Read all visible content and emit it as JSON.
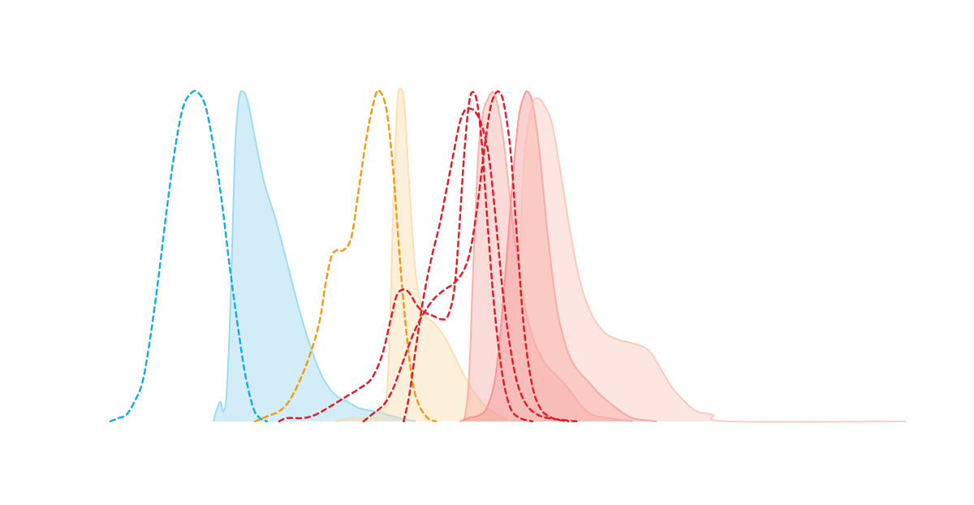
{
  "chart_data": {
    "type": "area",
    "title": "",
    "xlabel": "",
    "ylabel": "",
    "xlim": [
      0,
      1000
    ],
    "ylim": [
      0,
      1.05
    ],
    "grid": false,
    "legend": "none",
    "filled_style": {
      "fill_opacity": 0.4,
      "stroke_opacity": 0.55,
      "stroke_width": 2
    },
    "dashed_style": {
      "dash": "6 5",
      "stroke_width": 2.5
    },
    "series": [
      {
        "style": "filled",
        "color": "#8fd3ee",
        "points": [
          [
            128,
            0
          ],
          [
            133,
            0.04
          ],
          [
            137,
            0.06
          ],
          [
            141,
            0.03
          ],
          [
            145,
            0.1
          ],
          [
            150,
            0.4
          ],
          [
            155,
            0.82
          ],
          [
            160,
            0.98
          ],
          [
            166,
            1.0
          ],
          [
            172,
            0.96
          ],
          [
            180,
            0.86
          ],
          [
            192,
            0.72
          ],
          [
            205,
            0.62
          ],
          [
            220,
            0.48
          ],
          [
            235,
            0.34
          ],
          [
            250,
            0.22
          ],
          [
            265,
            0.13
          ],
          [
            280,
            0.08
          ],
          [
            295,
            0.06
          ],
          [
            310,
            0.04
          ],
          [
            330,
            0.03
          ],
          [
            360,
            0.01
          ],
          [
            380,
            0
          ]
        ]
      },
      {
        "style": "dashed",
        "color": "#1aaed6",
        "points": [
          [
            0,
            0
          ],
          [
            10,
            0.01
          ],
          [
            20,
            0.02
          ],
          [
            30,
            0.06
          ],
          [
            40,
            0.12
          ],
          [
            50,
            0.26
          ],
          [
            60,
            0.44
          ],
          [
            70,
            0.64
          ],
          [
            80,
            0.82
          ],
          [
            90,
            0.95
          ],
          [
            100,
            0.995
          ],
          [
            108,
            1.0
          ],
          [
            118,
            0.96
          ],
          [
            128,
            0.84
          ],
          [
            138,
            0.68
          ],
          [
            148,
            0.48
          ],
          [
            158,
            0.3
          ],
          [
            168,
            0.14
          ],
          [
            178,
            0.04
          ],
          [
            186,
            0.01
          ],
          [
            195,
            0
          ]
        ]
      },
      {
        "style": "filled",
        "color": "#fbd9a6",
        "points": [
          [
            280,
            0
          ],
          [
            300,
            0.01
          ],
          [
            320,
            0.01
          ],
          [
            335,
            0.02
          ],
          [
            345,
            0.12
          ],
          [
            352,
            0.65
          ],
          [
            357,
            0.96
          ],
          [
            361,
            1.01
          ],
          [
            366,
            0.96
          ],
          [
            372,
            0.72
          ],
          [
            380,
            0.45
          ],
          [
            390,
            0.33
          ],
          [
            402,
            0.3
          ],
          [
            415,
            0.26
          ],
          [
            428,
            0.2
          ],
          [
            440,
            0.14
          ],
          [
            455,
            0.08
          ],
          [
            470,
            0.04
          ],
          [
            490,
            0.01
          ],
          [
            510,
            0
          ]
        ]
      },
      {
        "style": "dashed",
        "color": "#f29b16",
        "points": [
          [
            180,
            0
          ],
          [
            190,
            0.01
          ],
          [
            200,
            0.02
          ],
          [
            210,
            0.03
          ],
          [
            222,
            0.06
          ],
          [
            235,
            0.12
          ],
          [
            248,
            0.2
          ],
          [
            260,
            0.3
          ],
          [
            268,
            0.42
          ],
          [
            275,
            0.5
          ],
          [
            282,
            0.52
          ],
          [
            290,
            0.52
          ],
          [
            300,
            0.56
          ],
          [
            310,
            0.72
          ],
          [
            320,
            0.88
          ],
          [
            330,
            0.99
          ],
          [
            336,
            1.0
          ],
          [
            344,
            0.94
          ],
          [
            352,
            0.76
          ],
          [
            360,
            0.5
          ],
          [
            368,
            0.28
          ],
          [
            376,
            0.12
          ],
          [
            384,
            0.05
          ],
          [
            395,
            0.01
          ],
          [
            405,
            0
          ]
        ]
      },
      {
        "style": "filled",
        "color": "#f6a59d",
        "points": [
          [
            440,
            0
          ],
          [
            446,
            0.12
          ],
          [
            452,
            0.5
          ],
          [
            458,
            0.82
          ],
          [
            464,
            0.94
          ],
          [
            470,
            0.98
          ],
          [
            476,
            1.0
          ],
          [
            482,
            0.96
          ],
          [
            490,
            0.84
          ],
          [
            500,
            0.62
          ],
          [
            512,
            0.4
          ],
          [
            525,
            0.26
          ],
          [
            540,
            0.18
          ],
          [
            555,
            0.14
          ],
          [
            570,
            0.1
          ],
          [
            585,
            0.05
          ],
          [
            600,
            0.02
          ],
          [
            620,
            0.01
          ],
          [
            650,
            0
          ]
        ]
      },
      {
        "style": "filled",
        "color": "#f28b8b",
        "points": [
          [
            435,
            0
          ],
          [
            445,
            0.01
          ],
          [
            460,
            0.02
          ],
          [
            470,
            0.05
          ],
          [
            480,
            0.15
          ],
          [
            490,
            0.4
          ],
          [
            500,
            0.72
          ],
          [
            508,
            0.92
          ],
          [
            515,
            0.99
          ],
          [
            520,
            1.0
          ],
          [
            526,
            0.96
          ],
          [
            534,
            0.82
          ],
          [
            545,
            0.55
          ],
          [
            556,
            0.34
          ],
          [
            568,
            0.22
          ],
          [
            580,
            0.16
          ],
          [
            595,
            0.12
          ],
          [
            610,
            0.08
          ],
          [
            630,
            0.04
          ],
          [
            650,
            0.01
          ],
          [
            680,
            0
          ]
        ]
      },
      {
        "style": "filled",
        "color": "#f9c1b3",
        "points": [
          [
            495,
            0
          ],
          [
            500,
            0.05
          ],
          [
            505,
            0.25
          ],
          [
            510,
            0.55
          ],
          [
            515,
            0.8
          ],
          [
            520,
            0.9
          ],
          [
            526,
            0.97
          ],
          [
            533,
            0.98
          ],
          [
            540,
            0.96
          ],
          [
            550,
            0.9
          ],
          [
            560,
            0.76
          ],
          [
            572,
            0.58
          ],
          [
            585,
            0.42
          ],
          [
            600,
            0.32
          ],
          [
            615,
            0.27
          ],
          [
            630,
            0.25
          ],
          [
            645,
            0.24
          ],
          [
            660,
            0.23
          ],
          [
            672,
            0.21
          ],
          [
            685,
            0.16
          ],
          [
            700,
            0.1
          ],
          [
            715,
            0.06
          ],
          [
            730,
            0.03
          ],
          [
            750,
            0.02
          ],
          [
            770,
            0
          ],
          [
            990,
            0
          ]
        ]
      },
      {
        "style": "dashed",
        "color": "#e01d2b",
        "points": [
          [
            210,
            0
          ],
          [
            220,
            0.01
          ],
          [
            240,
            0.01
          ],
          [
            255,
            0.02
          ],
          [
            270,
            0.04
          ],
          [
            290,
            0.07
          ],
          [
            310,
            0.1
          ],
          [
            325,
            0.13
          ],
          [
            338,
            0.2
          ],
          [
            348,
            0.3
          ],
          [
            356,
            0.38
          ],
          [
            364,
            0.4
          ],
          [
            372,
            0.39
          ],
          [
            382,
            0.35
          ],
          [
            392,
            0.33
          ],
          [
            402,
            0.32
          ],
          [
            412,
            0.31
          ],
          [
            420,
            0.32
          ],
          [
            428,
            0.4
          ],
          [
            434,
            0.58
          ],
          [
            440,
            0.8
          ],
          [
            446,
            0.96
          ],
          [
            451,
            1.0
          ],
          [
            457,
            0.96
          ],
          [
            463,
            0.82
          ],
          [
            470,
            0.58
          ],
          [
            478,
            0.34
          ],
          [
            488,
            0.14
          ],
          [
            498,
            0.04
          ],
          [
            510,
            0.01
          ],
          [
            525,
            0
          ]
        ]
      },
      {
        "style": "dashed",
        "color": "#e01d2b",
        "points": [
          [
            315,
            0
          ],
          [
            325,
            0.02
          ],
          [
            340,
            0.05
          ],
          [
            352,
            0.1
          ],
          [
            364,
            0.18
          ],
          [
            376,
            0.26
          ],
          [
            388,
            0.32
          ],
          [
            402,
            0.37
          ],
          [
            416,
            0.4
          ],
          [
            428,
            0.42
          ],
          [
            440,
            0.46
          ],
          [
            448,
            0.52
          ],
          [
            456,
            0.64
          ],
          [
            464,
            0.8
          ],
          [
            472,
            0.94
          ],
          [
            478,
            0.99
          ],
          [
            484,
            1.0
          ],
          [
            490,
            0.96
          ],
          [
            498,
            0.82
          ],
          [
            506,
            0.56
          ],
          [
            514,
            0.3
          ],
          [
            524,
            0.12
          ],
          [
            535,
            0.04
          ],
          [
            550,
            0.01
          ],
          [
            570,
            0
          ]
        ]
      },
      {
        "style": "dashed",
        "color": "#e01d2b",
        "points": [
          [
            365,
            0
          ],
          [
            372,
            0.08
          ],
          [
            380,
            0.22
          ],
          [
            390,
            0.38
          ],
          [
            400,
            0.5
          ],
          [
            410,
            0.6
          ],
          [
            418,
            0.7
          ],
          [
            426,
            0.8
          ],
          [
            434,
            0.9
          ],
          [
            440,
            0.94
          ],
          [
            446,
            0.95
          ],
          [
            454,
            0.94
          ],
          [
            462,
            0.9
          ],
          [
            470,
            0.82
          ],
          [
            476,
            0.7
          ],
          [
            482,
            0.55
          ],
          [
            488,
            0.4
          ],
          [
            496,
            0.25
          ],
          [
            506,
            0.12
          ],
          [
            518,
            0.05
          ],
          [
            532,
            0.02
          ],
          [
            545,
            0.01
          ],
          [
            560,
            0.005
          ],
          [
            580,
            0
          ]
        ]
      }
    ]
  }
}
